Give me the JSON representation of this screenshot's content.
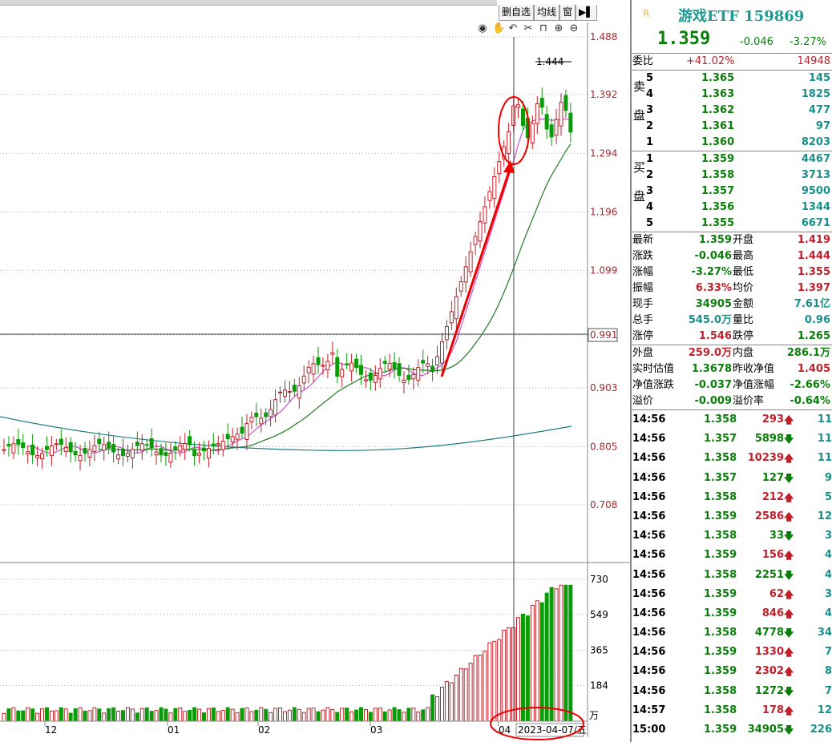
{
  "toolbar": {
    "tabs": [
      "删自选",
      "均线",
      "窗"
    ],
    "icons": [
      "eye-icon",
      "hand-icon",
      "undo-icon",
      "scissors-icon",
      "lock-icon",
      "zoom-in-icon",
      "zoom-out-icon"
    ]
  },
  "chart_data": {
    "type": "candlestick",
    "price_axis": [
      "1.488",
      "1.392",
      "1.294",
      "1.196",
      "1.099",
      "0.991",
      "0.903",
      "0.805",
      "0.708"
    ],
    "volume_axis": [
      "730",
      "549",
      "365",
      "184"
    ],
    "volume_unit": "万",
    "x_labels": [
      "12",
      "01",
      "02",
      "03",
      "04"
    ],
    "cursor_date": "2023-04-07/五",
    "high_marker": "1.444",
    "annotations": [
      "red circle around breakout candle",
      "red arrow up trend",
      "red ellipse on date"
    ]
  },
  "quote": {
    "badge": "R",
    "name": "游戏ETF 159869",
    "price": "1.359",
    "change": "-0.046",
    "change_pct": "-3.27%",
    "wei_bi_label": "委比",
    "wei_bi": "+41.02%",
    "wei_cha": "14948",
    "sell_label": "卖盘",
    "buy_label": "买盘",
    "sell": [
      {
        "lvl": "5",
        "price": "1.365",
        "vol": "145"
      },
      {
        "lvl": "4",
        "price": "1.363",
        "vol": "1825"
      },
      {
        "lvl": "3",
        "price": "1.362",
        "vol": "477"
      },
      {
        "lvl": "2",
        "price": "1.361",
        "vol": "97"
      },
      {
        "lvl": "1",
        "price": "1.360",
        "vol": "8203"
      }
    ],
    "buy": [
      {
        "lvl": "1",
        "price": "1.359",
        "vol": "4467"
      },
      {
        "lvl": "2",
        "price": "1.358",
        "vol": "3713"
      },
      {
        "lvl": "3",
        "price": "1.357",
        "vol": "9500"
      },
      {
        "lvl": "4",
        "price": "1.356",
        "vol": "1344"
      },
      {
        "lvl": "5",
        "price": "1.355",
        "vol": "6671"
      }
    ],
    "stats": [
      {
        "l1": "最新",
        "v1": "1.359",
        "c1": "green",
        "l2": "开盘",
        "v2": "1.419",
        "c2": "red"
      },
      {
        "l1": "涨跌",
        "v1": "-0.046",
        "c1": "green",
        "l2": "最高",
        "v2": "1.444",
        "c2": "red"
      },
      {
        "l1": "涨幅",
        "v1": "-3.27%",
        "c1": "green",
        "l2": "最低",
        "v2": "1.355",
        "c2": "red"
      },
      {
        "l1": "振幅",
        "v1": "6.33%",
        "c1": "red",
        "l2": "均价",
        "v2": "1.397",
        "c2": "red"
      },
      {
        "l1": "现手",
        "v1": "34905",
        "c1": "green",
        "l2": "金额",
        "v2": "7.61亿",
        "c2": "teal"
      },
      {
        "l1": "总手",
        "v1": "545.0万",
        "c1": "teal",
        "l2": "量比",
        "v2": "0.96",
        "c2": "teal"
      },
      {
        "l1": "涨停",
        "v1": "1.546",
        "c1": "red",
        "l2": "跌停",
        "v2": "1.265",
        "c2": "green"
      }
    ],
    "extra": [
      {
        "l1": "外盘",
        "v1": "259.0万",
        "c1": "red",
        "l2": "内盘",
        "v2": "286.1万",
        "c2": "green"
      },
      {
        "l1": "实时估值",
        "v1": "1.3678",
        "c1": "green",
        "l2": "昨收净值",
        "v2": "1.405",
        "c2": "red"
      },
      {
        "l1": "净值涨跌",
        "v1": "-0.037",
        "c1": "green",
        "l2": "净值涨幅",
        "v2": "-2.66%",
        "c2": "green"
      },
      {
        "l1": "溢价",
        "v1": "-0.009",
        "c1": "green",
        "l2": "溢价率",
        "v2": "-0.64%",
        "c2": "green"
      }
    ],
    "ticks": [
      {
        "t": "14:56",
        "p": "1.358",
        "v": "293",
        "d": "up",
        "n": "11"
      },
      {
        "t": "14:56",
        "p": "1.357",
        "v": "5898",
        "d": "dn",
        "n": "11"
      },
      {
        "t": "14:56",
        "p": "1.358",
        "v": "10239",
        "d": "up",
        "n": "11"
      },
      {
        "t": "14:56",
        "p": "1.357",
        "v": "127",
        "d": "dn",
        "n": "9"
      },
      {
        "t": "14:56",
        "p": "1.358",
        "v": "212",
        "d": "up",
        "n": "5"
      },
      {
        "t": "14:56",
        "p": "1.359",
        "v": "2586",
        "d": "up",
        "n": "12"
      },
      {
        "t": "14:56",
        "p": "1.358",
        "v": "33",
        "d": "dn",
        "n": "3"
      },
      {
        "t": "14:56",
        "p": "1.359",
        "v": "156",
        "d": "up",
        "n": "4"
      },
      {
        "t": "14:56",
        "p": "1.358",
        "v": "2251",
        "d": "dn",
        "n": "4"
      },
      {
        "t": "14:56",
        "p": "1.359",
        "v": "62",
        "d": "up",
        "n": "3"
      },
      {
        "t": "14:56",
        "p": "1.359",
        "v": "846",
        "d": "up",
        "n": "4"
      },
      {
        "t": "14:56",
        "p": "1.358",
        "v": "4778",
        "d": "dn",
        "n": "34"
      },
      {
        "t": "14:56",
        "p": "1.359",
        "v": "1330",
        "d": "up",
        "n": "7"
      },
      {
        "t": "14:56",
        "p": "1.359",
        "v": "2302",
        "d": "up",
        "n": "8"
      },
      {
        "t": "14:56",
        "p": "1.358",
        "v": "1272",
        "d": "dn",
        "n": "7"
      },
      {
        "t": "14:57",
        "p": "1.358",
        "v": "178",
        "d": "up",
        "n": "12"
      },
      {
        "t": "15:00",
        "p": "1.359",
        "v": "34905",
        "d": "dn",
        "n": "226"
      }
    ]
  }
}
